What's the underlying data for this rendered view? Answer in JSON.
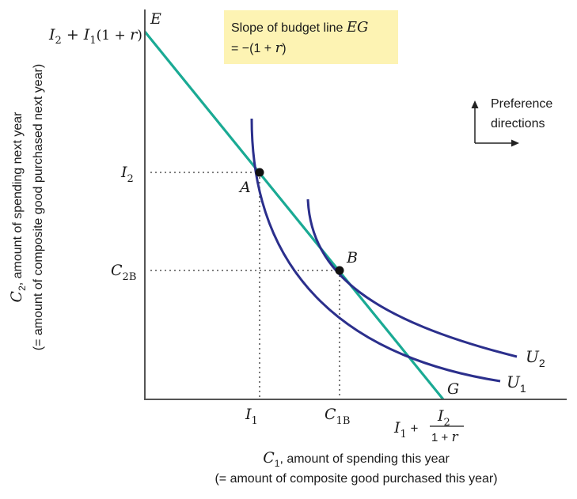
{
  "colors": {
    "budget_line": "#1aaa94",
    "indifference_curves": "#2b2f8c",
    "axes": "#555555",
    "guides": "#333333",
    "callout_bg": "#fdf3b3",
    "points": "#111111"
  },
  "callout": {
    "line1": "Slope of budget line",
    "line1_var": "EG",
    "line2": "= −(1 + ",
    "line2_var": "r",
    "line2_end": ")"
  },
  "preference": {
    "icon": "arrows-up-right-icon",
    "line1": "Preference",
    "line2": "directions"
  },
  "y_axis": {
    "title_var": "C",
    "title_sub": "2",
    "title_rest": ", amount of spending next year",
    "subtitle": "(= amount of composite good purchased next year)",
    "top_label": {
      "a": "I",
      "a_sub": "2",
      "plus": " + ",
      "b": "I",
      "b_sub": "1",
      "paren": "(1 + ",
      "r": "r",
      "close": ")"
    },
    "ticks": [
      {
        "var": "I",
        "sub": "2"
      },
      {
        "var": "C",
        "sub": "2B"
      }
    ]
  },
  "x_axis": {
    "title_var": "C",
    "title_sub": "1",
    "title_rest": ", amount of spending this year",
    "subtitle": "(= amount of composite good purchased this year)",
    "ticks": [
      {
        "var": "I",
        "sub": "1"
      },
      {
        "var": "C",
        "sub": "1B"
      }
    ],
    "end_label": {
      "a": "I",
      "a_sub": "1",
      "plus": " + ",
      "num": "I",
      "num_sub": "2",
      "den": "1 + ",
      "den_r": "r"
    }
  },
  "points": [
    {
      "label": "A"
    },
    {
      "label": "B"
    }
  ],
  "line_labels": {
    "start": "E",
    "end": "G"
  },
  "curves": [
    {
      "var": "U",
      "sub": "1"
    },
    {
      "var": "U",
      "sub": "2"
    }
  ]
}
